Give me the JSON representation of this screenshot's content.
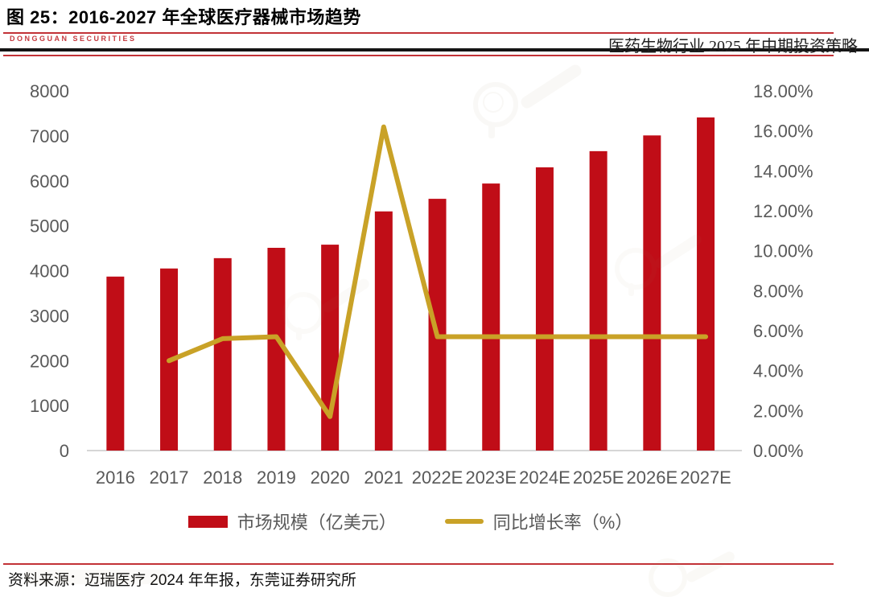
{
  "page": {
    "title": "图 25：2016-2027 年全球医疗器械市场趋势",
    "brand": "DONGGUAN SECURITIES",
    "report_label": "医药生物行业 2025 年中期投资策略",
    "source": "资料来源：迈瑞医疗 2024 年年报，东莞证券研究所"
  },
  "colors": {
    "bar_red": "#c00d17",
    "line_gold": "#c9a227",
    "axis_text_gray": "#595959",
    "axis_line_gray": "#d6d6d6",
    "accent_red": "#c23237",
    "rule_black": "#141414"
  },
  "chart_data": {
    "type": "bar",
    "subtype": "combo-bar-line",
    "title": "2016-2027 年全球医疗器械市场趋势",
    "categories": [
      "2016",
      "2017",
      "2018",
      "2019",
      "2020",
      "2021",
      "2022E",
      "2023E",
      "2024E",
      "2025E",
      "2026E",
      "2027E"
    ],
    "series": [
      {
        "name": "市场规模（亿美元）",
        "type": "bar",
        "axis": "left",
        "color": "#c00d17",
        "values": [
          3870,
          4050,
          4280,
          4510,
          4580,
          5320,
          5600,
          5940,
          6300,
          6660,
          7010,
          7410
        ]
      },
      {
        "name": "同比增长率（%）",
        "type": "line",
        "axis": "right",
        "color": "#c9a227",
        "values": [
          null,
          4.5,
          5.6,
          5.7,
          1.7,
          16.2,
          5.7,
          5.7,
          5.7,
          5.7,
          5.7,
          5.7
        ]
      }
    ],
    "left_axis": {
      "min": 0,
      "max": 8000,
      "step": 1000,
      "ticks": [
        "0",
        "1000",
        "2000",
        "3000",
        "4000",
        "5000",
        "6000",
        "7000",
        "8000"
      ]
    },
    "right_axis": {
      "min": 0,
      "max": 18,
      "step": 2,
      "ticks": [
        "0.00%",
        "2.00%",
        "4.00%",
        "6.00%",
        "8.00%",
        "10.00%",
        "12.00%",
        "14.00%",
        "16.00%",
        "18.00%"
      ]
    },
    "grid": false,
    "legend_position": "bottom",
    "legend": [
      "市场规模（亿美元）",
      "同比增长率（%）"
    ]
  }
}
